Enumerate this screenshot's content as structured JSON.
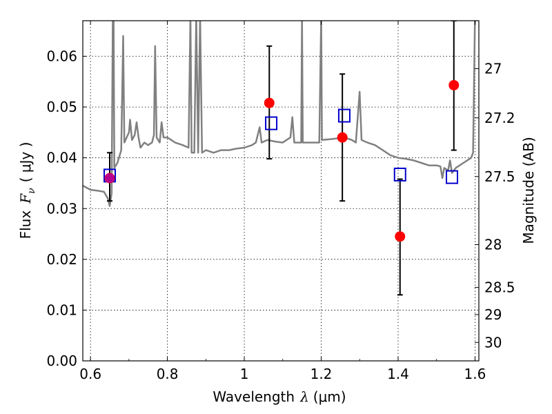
{
  "chart_data": {
    "type": "scatter",
    "xlabel_text": "Wavelength",
    "xlabel_symbol": "λ",
    "xlabel_unit": "(μm)",
    "ylabel_text": "Flux",
    "ylabel_symbol": "F",
    "ylabel_sub": "ν",
    "ylabel_unit": "( μJy )",
    "y2label": "Magnitude (AB)",
    "xlim": [
      0.58,
      1.61
    ],
    "ylim": [
      0.0,
      0.067
    ],
    "grid": true,
    "x_ticks": [
      {
        "value": 0.6,
        "label": "0.6"
      },
      {
        "value": 0.8,
        "label": "0.8"
      },
      {
        "value": 1.0,
        "label": "1"
      },
      {
        "value": 1.2,
        "label": "1.2"
      },
      {
        "value": 1.4,
        "label": "1.4"
      },
      {
        "value": 1.6,
        "label": "1.6"
      }
    ],
    "y_ticks": [
      {
        "value": 0.0,
        "label": "0.00"
      },
      {
        "value": 0.01,
        "label": "0.01"
      },
      {
        "value": 0.02,
        "label": "0.02"
      },
      {
        "value": 0.03,
        "label": "0.03"
      },
      {
        "value": 0.04,
        "label": "0.04"
      },
      {
        "value": 0.05,
        "label": "0.05"
      },
      {
        "value": 0.06,
        "label": "0.06"
      }
    ],
    "y2_ticks": [
      {
        "value": 27.0,
        "label": "27"
      },
      {
        "value": 27.2,
        "label": "27.2"
      },
      {
        "value": 27.5,
        "label": "27.5"
      },
      {
        "value": 28.0,
        "label": "28"
      },
      {
        "value": 28.5,
        "label": "28.5"
      },
      {
        "value": 29.0,
        "label": "29"
      },
      {
        "value": 30.0,
        "label": "30"
      }
    ],
    "series": [
      {
        "kind": "line",
        "color": "#808080",
        "points": [
          [
            0.58,
            0.0345
          ],
          [
            0.6,
            0.0337
          ],
          [
            0.62,
            0.0335
          ],
          [
            0.635,
            0.0333
          ],
          [
            0.645,
            0.032
          ],
          [
            0.65,
            0.0305
          ],
          [
            0.655,
            0.033
          ],
          [
            0.658,
            0.068
          ],
          [
            0.66,
            0.068
          ],
          [
            0.662,
            0.038
          ],
          [
            0.67,
            0.039
          ],
          [
            0.68,
            0.0415
          ],
          [
            0.685,
            0.064
          ],
          [
            0.688,
            0.043
          ],
          [
            0.7,
            0.045
          ],
          [
            0.703,
            0.0475
          ],
          [
            0.708,
            0.0435
          ],
          [
            0.715,
            0.0445
          ],
          [
            0.72,
            0.047
          ],
          [
            0.725,
            0.044
          ],
          [
            0.73,
            0.042
          ],
          [
            0.74,
            0.043
          ],
          [
            0.75,
            0.0425
          ],
          [
            0.76,
            0.043
          ],
          [
            0.765,
            0.0445
          ],
          [
            0.768,
            0.062
          ],
          [
            0.772,
            0.044
          ],
          [
            0.78,
            0.043
          ],
          [
            0.785,
            0.047
          ],
          [
            0.79,
            0.044
          ],
          [
            0.8,
            0.044
          ],
          [
            0.82,
            0.043
          ],
          [
            0.84,
            0.0425
          ],
          [
            0.855,
            0.042
          ],
          [
            0.86,
            0.068
          ],
          [
            0.863,
            0.041
          ],
          [
            0.87,
            0.041
          ],
          [
            0.875,
            0.068
          ],
          [
            0.88,
            0.041
          ],
          [
            0.885,
            0.068
          ],
          [
            0.89,
            0.041
          ],
          [
            0.9,
            0.0415
          ],
          [
            0.92,
            0.041
          ],
          [
            0.94,
            0.0415
          ],
          [
            0.96,
            0.0415
          ],
          [
            0.98,
            0.0418
          ],
          [
            1.0,
            0.042
          ],
          [
            1.02,
            0.0425
          ],
          [
            1.03,
            0.043
          ],
          [
            1.04,
            0.046
          ],
          [
            1.045,
            0.043
          ],
          [
            1.06,
            0.0435
          ],
          [
            1.08,
            0.0432
          ],
          [
            1.1,
            0.043
          ],
          [
            1.12,
            0.044
          ],
          [
            1.125,
            0.048
          ],
          [
            1.13,
            0.043
          ],
          [
            1.14,
            0.043
          ],
          [
            1.148,
            0.043
          ],
          [
            1.15,
            0.068
          ],
          [
            1.152,
            0.043
          ],
          [
            1.18,
            0.043
          ],
          [
            1.195,
            0.043
          ],
          [
            1.2,
            0.068
          ],
          [
            1.202,
            0.0435
          ],
          [
            1.23,
            0.0437
          ],
          [
            1.26,
            0.044
          ],
          [
            1.28,
            0.0435
          ],
          [
            1.29,
            0.043
          ],
          [
            1.3,
            0.053
          ],
          [
            1.305,
            0.0435
          ],
          [
            1.32,
            0.043
          ],
          [
            1.34,
            0.0425
          ],
          [
            1.36,
            0.0415
          ],
          [
            1.38,
            0.0405
          ],
          [
            1.4,
            0.04
          ],
          [
            1.42,
            0.0398
          ],
          [
            1.44,
            0.0395
          ],
          [
            1.46,
            0.039
          ],
          [
            1.48,
            0.0385
          ],
          [
            1.5,
            0.0385
          ],
          [
            1.51,
            0.0383
          ],
          [
            1.515,
            0.036
          ],
          [
            1.52,
            0.038
          ],
          [
            1.53,
            0.0375
          ],
          [
            1.535,
            0.0395
          ],
          [
            1.54,
            0.037
          ],
          [
            1.55,
            0.038
          ],
          [
            1.56,
            0.0385
          ],
          [
            1.57,
            0.039
          ],
          [
            1.58,
            0.0395
          ],
          [
            1.59,
            0.04
          ],
          [
            1.595,
            0.041
          ],
          [
            1.6,
            0.068
          ],
          [
            1.61,
            0.068
          ]
        ]
      },
      {
        "kind": "errorbar",
        "color": "#000000",
        "points": [
          {
            "x": 0.65,
            "y": 0.036,
            "ylo": 0.0315,
            "yhi": 0.041
          },
          {
            "x": 1.065,
            "y": 0.0508,
            "ylo": 0.0398,
            "yhi": 0.062
          },
          {
            "x": 1.255,
            "y": 0.044,
            "ylo": 0.0315,
            "yhi": 0.0565
          },
          {
            "x": 1.405,
            "y": 0.0245,
            "ylo": 0.013,
            "yhi": 0.0358
          },
          {
            "x": 1.545,
            "y": 0.0543,
            "ylo": 0.0415,
            "yhi": 0.067
          }
        ]
      },
      {
        "kind": "squares",
        "color": "#0000cc",
        "points": [
          [
            0.65,
            0.0365
          ],
          [
            1.07,
            0.0468
          ],
          [
            1.26,
            0.0483
          ],
          [
            1.405,
            0.0367
          ],
          [
            1.54,
            0.0362
          ]
        ]
      },
      {
        "kind": "circles",
        "color": "#ff0000",
        "points": [
          [
            0.65,
            0.036
          ],
          [
            1.065,
            0.0508
          ],
          [
            1.255,
            0.044
          ],
          [
            1.405,
            0.0245
          ],
          [
            1.545,
            0.0543
          ]
        ]
      }
    ]
  }
}
